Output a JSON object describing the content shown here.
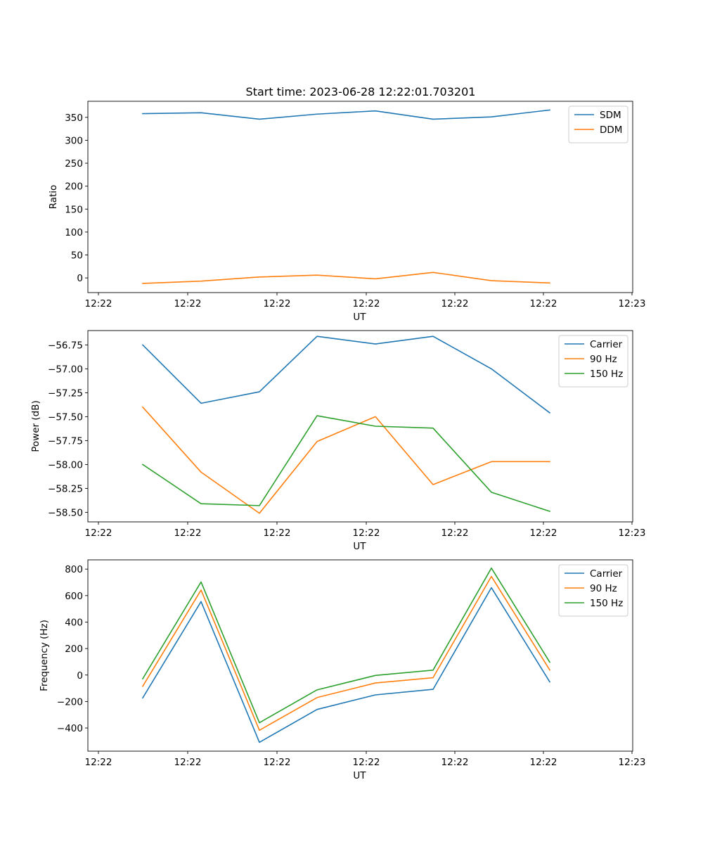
{
  "figure": {
    "title": "Start time: 2023-06-28 12:22:01.703201"
  },
  "colors": {
    "blue": "#1f77b4",
    "orange": "#ff7f0e",
    "green": "#2ca02c"
  },
  "chart_data": [
    {
      "type": "line",
      "title": "Start time: 2023-06-28 12:22:01.703201",
      "xlabel": "UT",
      "ylabel": "Ratio",
      "x_tick_labels": [
        "12:22",
        "12:22",
        "12:22",
        "12:22",
        "12:22",
        "12:22",
        "12:23"
      ],
      "y_ticks": [
        0,
        50,
        100,
        150,
        200,
        250,
        300,
        350
      ],
      "ylim": [
        -32,
        385
      ],
      "legend_position": "top-right",
      "grid": false,
      "series": [
        {
          "name": "SDM",
          "color": "#1f77b4",
          "values": [
            358,
            360,
            346,
            357,
            364,
            346,
            351,
            366
          ]
        },
        {
          "name": "DDM",
          "color": "#ff7f0e",
          "values": [
            -12,
            -7,
            2,
            6,
            -2,
            12,
            -6,
            -11
          ]
        }
      ]
    },
    {
      "type": "line",
      "title": "",
      "xlabel": "UT",
      "ylabel": "Power (dB)",
      "x_tick_labels": [
        "12:22",
        "12:22",
        "12:22",
        "12:22",
        "12:22",
        "12:22",
        "12:23"
      ],
      "y_ticks": [
        -58.5,
        -58.25,
        -58.0,
        -57.75,
        -57.5,
        -57.25,
        -57.0,
        -56.75
      ],
      "y_tick_labels": [
        "−58.50",
        "−58.25",
        "−58.00",
        "−57.75",
        "−57.50",
        "−57.25",
        "−57.00",
        "−56.75"
      ],
      "ylim": [
        -58.6,
        -56.6
      ],
      "legend_position": "top-right",
      "grid": false,
      "series": [
        {
          "name": "Carrier",
          "color": "#1f77b4",
          "values": [
            -56.75,
            -57.36,
            -57.24,
            -56.66,
            -56.74,
            -56.66,
            -57.0,
            -57.46
          ]
        },
        {
          "name": "90 Hz",
          "color": "#ff7f0e",
          "values": [
            -57.4,
            -58.08,
            -58.51,
            -57.76,
            -57.5,
            -58.21,
            -57.97,
            -57.97
          ]
        },
        {
          "name": "150 Hz",
          "color": "#2ca02c",
          "values": [
            -58.0,
            -58.41,
            -58.43,
            -57.49,
            -57.6,
            -57.62,
            -58.29,
            -58.49
          ]
        }
      ]
    },
    {
      "type": "line",
      "title": "",
      "xlabel": "UT",
      "ylabel": "Frequency (Hz)",
      "x_tick_labels": [
        "12:22",
        "12:22",
        "12:22",
        "12:22",
        "12:22",
        "12:22",
        "12:23"
      ],
      "y_ticks": [
        -400,
        -200,
        0,
        200,
        400,
        600,
        800
      ],
      "y_tick_labels": [
        "−400",
        "−200",
        "0",
        "200",
        "400",
        "600",
        "800"
      ],
      "ylim": [
        -575,
        870
      ],
      "legend_position": "top-right",
      "grid": false,
      "series": [
        {
          "name": "Carrier",
          "color": "#1f77b4",
          "values": [
            -173,
            555,
            -508,
            -260,
            -150,
            -108,
            660,
            -52
          ]
        },
        {
          "name": "90 Hz",
          "color": "#ff7f0e",
          "values": [
            -85,
            642,
            -417,
            -170,
            -60,
            -20,
            745,
            38
          ]
        },
        {
          "name": "150 Hz",
          "color": "#2ca02c",
          "values": [
            -28,
            703,
            -360,
            -112,
            -3,
            37,
            808,
            97
          ]
        }
      ]
    }
  ]
}
